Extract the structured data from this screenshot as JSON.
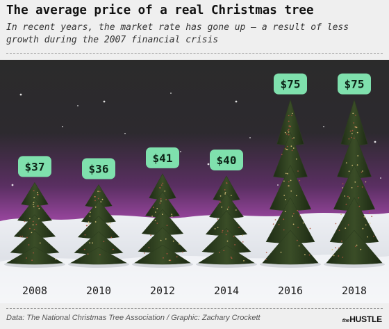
{
  "chart_data": {
    "type": "bar",
    "title": "The average price of a real Christmas tree",
    "subtitle": "In recent years, the market rate has gone up — a result of less growth during the 2007 financial crisis",
    "categories": [
      "2008",
      "2010",
      "2012",
      "2014",
      "2016",
      "2018"
    ],
    "values": [
      37,
      36,
      41,
      40,
      75,
      75
    ],
    "labels": [
      "$37",
      "$36",
      "$41",
      "$40",
      "$75",
      "$75"
    ],
    "xlabel": "",
    "ylabel": "",
    "ylim": [
      0,
      80
    ],
    "grid": false,
    "legend": "none"
  },
  "footer": {
    "source": "Data: The National Christmas Tree Association / Graphic: Zachary Crockett",
    "logo_the": "the",
    "logo_name": "HUSTLE"
  },
  "colors": {
    "background": "#efefef",
    "label_fill": "#7fe0ad",
    "label_text": "#0d2418",
    "sky_top": "#2a2a2a",
    "sky_glow": "#b04fb5",
    "snow": "#e6e8ee",
    "tree": "#2c3d1f"
  }
}
